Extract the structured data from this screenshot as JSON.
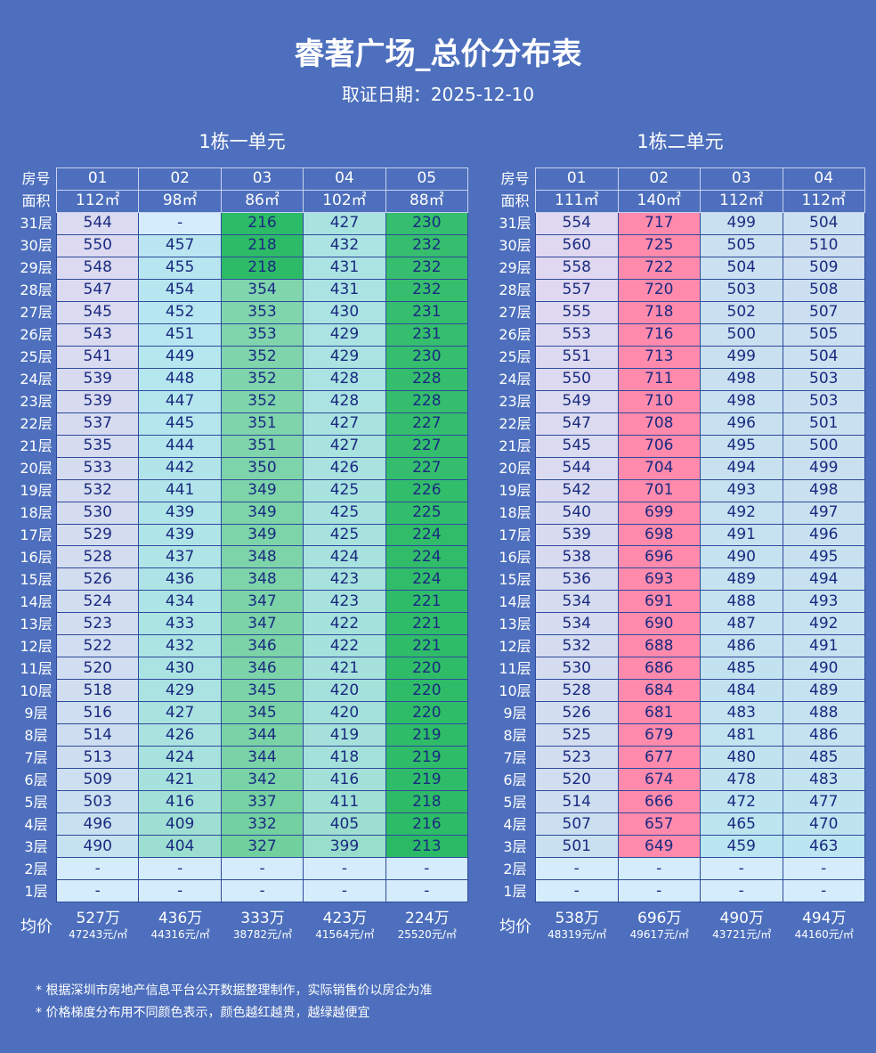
{
  "title": "睿著广场_总价分布表",
  "subtitle": "取证日期：2025-12-10",
  "row_labels": {
    "room": "房号",
    "area": "面积",
    "avg": "均价"
  },
  "floors": [
    "31层",
    "30层",
    "29层",
    "28层",
    "27层",
    "26层",
    "25层",
    "24层",
    "23层",
    "22层",
    "21层",
    "20层",
    "19层",
    "18层",
    "17层",
    "16层",
    "15层",
    "14层",
    "13层",
    "12层",
    "11层",
    "10层",
    "9层",
    "8层",
    "7层",
    "6层",
    "5层",
    "4层",
    "3层",
    "2层",
    "1层"
  ],
  "units": [
    {
      "name": "1栋一单元",
      "rooms": [
        "01",
        "02",
        "03",
        "04",
        "05"
      ],
      "areas": [
        "112㎡",
        "98㎡",
        "86㎡",
        "102㎡",
        "88㎡"
      ],
      "prices": [
        [
          "544",
          "-",
          "216",
          "427",
          "230"
        ],
        [
          "550",
          "457",
          "218",
          "432",
          "232"
        ],
        [
          "548",
          "455",
          "218",
          "431",
          "232"
        ],
        [
          "547",
          "454",
          "354",
          "431",
          "232"
        ],
        [
          "545",
          "452",
          "353",
          "430",
          "231"
        ],
        [
          "543",
          "451",
          "353",
          "429",
          "231"
        ],
        [
          "541",
          "449",
          "352",
          "429",
          "230"
        ],
        [
          "539",
          "448",
          "352",
          "428",
          "228"
        ],
        [
          "539",
          "447",
          "352",
          "428",
          "228"
        ],
        [
          "537",
          "445",
          "351",
          "427",
          "227"
        ],
        [
          "535",
          "444",
          "351",
          "427",
          "227"
        ],
        [
          "533",
          "442",
          "350",
          "426",
          "227"
        ],
        [
          "532",
          "441",
          "349",
          "425",
          "226"
        ],
        [
          "530",
          "439",
          "349",
          "425",
          "225"
        ],
        [
          "529",
          "439",
          "349",
          "425",
          "224"
        ],
        [
          "528",
          "437",
          "348",
          "424",
          "224"
        ],
        [
          "526",
          "436",
          "348",
          "423",
          "224"
        ],
        [
          "524",
          "434",
          "347",
          "423",
          "221"
        ],
        [
          "523",
          "433",
          "347",
          "422",
          "221"
        ],
        [
          "522",
          "432",
          "346",
          "422",
          "221"
        ],
        [
          "520",
          "430",
          "346",
          "421",
          "220"
        ],
        [
          "518",
          "429",
          "345",
          "420",
          "220"
        ],
        [
          "516",
          "427",
          "345",
          "420",
          "220"
        ],
        [
          "514",
          "426",
          "344",
          "419",
          "219"
        ],
        [
          "513",
          "424",
          "344",
          "418",
          "219"
        ],
        [
          "509",
          "421",
          "342",
          "416",
          "219"
        ],
        [
          "503",
          "416",
          "337",
          "411",
          "218"
        ],
        [
          "496",
          "409",
          "332",
          "405",
          "216"
        ],
        [
          "490",
          "404",
          "327",
          "399",
          "213"
        ],
        [
          "-",
          "-",
          "-",
          "-",
          "-"
        ],
        [
          "-",
          "-",
          "-",
          "-",
          "-"
        ]
      ],
      "avg_totals": [
        "527万",
        "436万",
        "333万",
        "423万",
        "224万"
      ],
      "avg_units": [
        "47243元/㎡",
        "44316元/㎡",
        "38782元/㎡",
        "41564元/㎡",
        "25520元/㎡"
      ]
    },
    {
      "name": "1栋二单元",
      "rooms": [
        "01",
        "02",
        "03",
        "04"
      ],
      "areas": [
        "111㎡",
        "140㎡",
        "112㎡",
        "112㎡"
      ],
      "prices": [
        [
          "554",
          "717",
          "499",
          "504"
        ],
        [
          "560",
          "725",
          "505",
          "510"
        ],
        [
          "558",
          "722",
          "504",
          "509"
        ],
        [
          "557",
          "720",
          "503",
          "508"
        ],
        [
          "555",
          "718",
          "502",
          "507"
        ],
        [
          "553",
          "716",
          "500",
          "505"
        ],
        [
          "551",
          "713",
          "499",
          "504"
        ],
        [
          "550",
          "711",
          "498",
          "503"
        ],
        [
          "549",
          "710",
          "498",
          "503"
        ],
        [
          "547",
          "708",
          "496",
          "501"
        ],
        [
          "545",
          "706",
          "495",
          "500"
        ],
        [
          "544",
          "704",
          "494",
          "499"
        ],
        [
          "542",
          "701",
          "493",
          "498"
        ],
        [
          "540",
          "699",
          "492",
          "497"
        ],
        [
          "539",
          "698",
          "491",
          "496"
        ],
        [
          "538",
          "696",
          "490",
          "495"
        ],
        [
          "536",
          "693",
          "489",
          "494"
        ],
        [
          "534",
          "691",
          "488",
          "493"
        ],
        [
          "534",
          "690",
          "487",
          "492"
        ],
        [
          "532",
          "688",
          "486",
          "491"
        ],
        [
          "530",
          "686",
          "485",
          "490"
        ],
        [
          "528",
          "684",
          "484",
          "489"
        ],
        [
          "526",
          "681",
          "483",
          "488"
        ],
        [
          "525",
          "679",
          "481",
          "486"
        ],
        [
          "523",
          "677",
          "480",
          "485"
        ],
        [
          "520",
          "674",
          "478",
          "483"
        ],
        [
          "514",
          "666",
          "472",
          "477"
        ],
        [
          "507",
          "657",
          "465",
          "470"
        ],
        [
          "501",
          "649",
          "459",
          "463"
        ],
        [
          "-",
          "-",
          "-",
          "-"
        ],
        [
          "-",
          "-",
          "-",
          "-"
        ]
      ],
      "avg_totals": [
        "538万",
        "696万",
        "490万",
        "494万"
      ],
      "avg_units": [
        "48319元/㎡",
        "49617元/㎡",
        "43721元/㎡",
        "44160元/㎡"
      ]
    }
  ],
  "footnotes": [
    "* 根据深圳市房地产信息平台公开数据整理制作，实际销售价以房企为准",
    "* 价格梯度分布用不同颜色表示，颜色越红越贵，越绿越便宜"
  ],
  "colors": {
    "background": "#4d6fbd",
    "empty_cell": "#d4ecfb",
    "cheap": "#22b85e",
    "mid": "#b6e7f0",
    "expensive": "#ff8aac"
  }
}
